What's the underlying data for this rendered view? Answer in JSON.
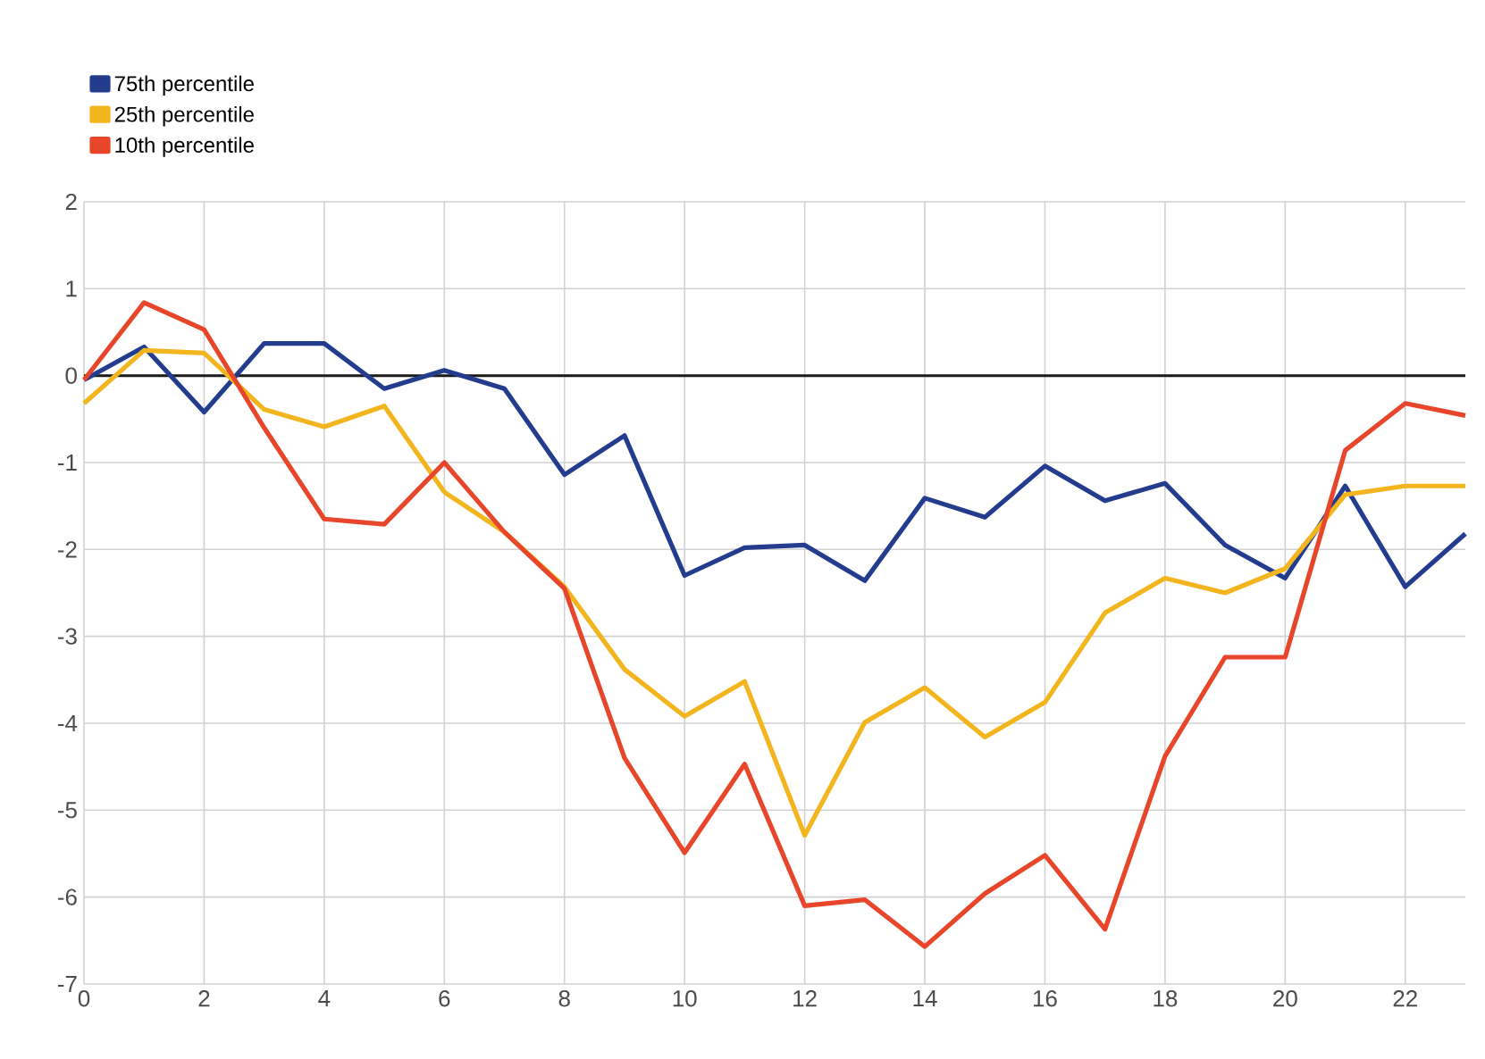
{
  "chart_data": {
    "type": "line",
    "x": [
      0,
      1,
      2,
      3,
      4,
      5,
      6,
      7,
      8,
      9,
      10,
      11,
      12,
      13,
      14,
      15,
      16,
      17,
      18,
      19,
      20,
      21,
      22,
      23
    ],
    "series": [
      {
        "name": "75th percentile",
        "color": "#233c8e",
        "values": [
          -0.05,
          0.33,
          -0.42,
          0.37,
          0.37,
          -0.15,
          0.06,
          -0.15,
          -1.14,
          -0.69,
          -2.3,
          -1.98,
          -1.95,
          -2.36,
          -1.41,
          -1.63,
          -1.04,
          -1.44,
          -1.24,
          -1.95,
          -2.33,
          -1.27,
          -2.43,
          -1.82
        ]
      },
      {
        "name": "25th percentile",
        "color": "#f2b51e",
        "values": [
          -0.32,
          0.29,
          0.26,
          -0.39,
          -0.59,
          -0.35,
          -1.34,
          -1.8,
          -2.43,
          -3.38,
          -3.92,
          -3.52,
          -5.29,
          -3.99,
          -3.59,
          -4.16,
          -3.76,
          -2.73,
          -2.33,
          -2.5,
          -2.22,
          -1.37,
          -1.27,
          -1.27
        ]
      },
      {
        "name": "10th percentile",
        "color": "#e8462a",
        "values": [
          -0.05,
          0.84,
          0.53,
          -0.6,
          -1.65,
          -1.71,
          -1.0,
          -1.8,
          -2.45,
          -4.4,
          -5.49,
          -4.47,
          -6.1,
          -6.03,
          -6.57,
          -5.96,
          -5.52,
          -6.37,
          -4.38,
          -3.24,
          -3.24,
          -0.86,
          -0.32,
          -0.46
        ]
      }
    ],
    "xlim": [
      0,
      23
    ],
    "xticks": [
      0,
      2,
      4,
      6,
      8,
      10,
      12,
      14,
      16,
      18,
      20,
      22
    ],
    "ylim": [
      -7,
      2
    ],
    "yticks": [
      -7,
      -6,
      -5,
      -4,
      -3,
      -2,
      -1,
      0,
      1,
      2
    ],
    "ref_lines": [
      {
        "axis": "y",
        "value": 0,
        "color": "#1a1a1a"
      }
    ],
    "grid": true,
    "legend": "top left",
    "marker": "none",
    "line_style": "solid"
  }
}
